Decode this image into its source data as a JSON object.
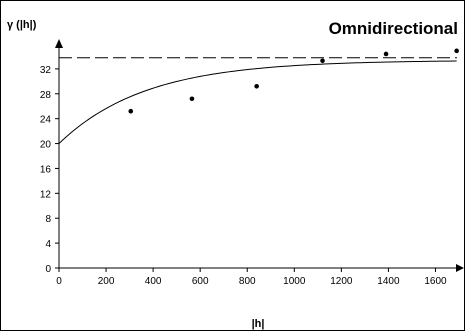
{
  "chart_data": {
    "type": "scatter",
    "title": "Omnidirectional",
    "xlabel": "|h|",
    "ylabel": "γ (|h|)",
    "xlim": [
      0,
      1700
    ],
    "ylim": [
      0,
      36
    ],
    "xticks": [
      0,
      200,
      400,
      600,
      800,
      1000,
      1200,
      1400,
      1600
    ],
    "yticks": [
      0,
      4,
      8,
      12,
      16,
      20,
      24,
      28,
      32
    ],
    "grid": false,
    "colors": {
      "points": "#000000",
      "curve": "#000000",
      "sill": "#000000"
    },
    "series": [
      {
        "type": "scatter",
        "x": [
          305,
          565,
          840,
          1120,
          1390,
          1690
        ],
        "y": [
          25.2,
          27.2,
          29.2,
          33.3,
          34.4,
          34.9
        ]
      },
      {
        "type": "line",
        "style": "solid",
        "model": "exponential",
        "nugget": 20,
        "sill": 33.4,
        "practical_range": 1100,
        "x_start": 0,
        "x_end": 1690
      },
      {
        "type": "line",
        "style": "dashed",
        "y": 33.8
      }
    ]
  }
}
